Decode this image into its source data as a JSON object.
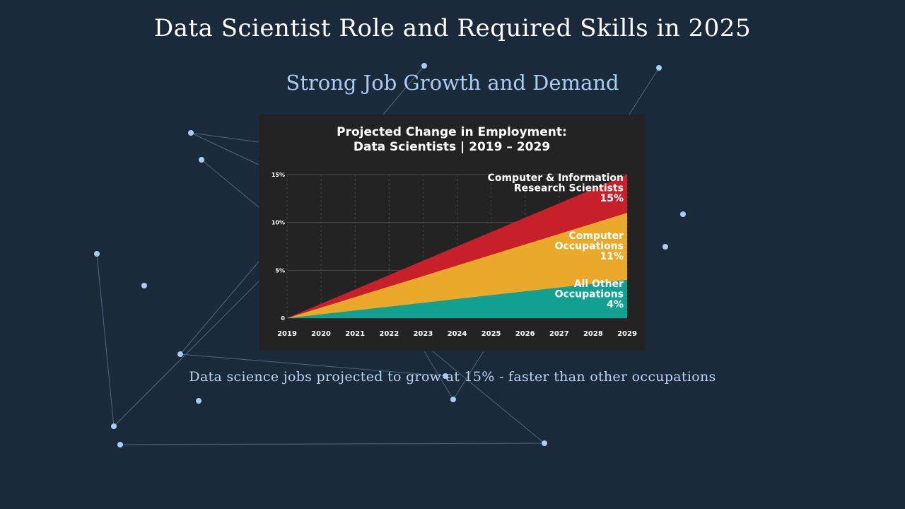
{
  "slide": {
    "title": "Data Scientist Role and Required Skills in 2025",
    "subtitle": "Strong Job Growth and Demand",
    "caption": "Data science jobs projected to grow at 15% - faster than other occupations"
  },
  "colors": {
    "background": "#1b2a3b",
    "network_line": "#4d6680",
    "network_node": "#a9cdf2",
    "panel": "#232323"
  },
  "chart_data": {
    "type": "area",
    "title_line1": "Projected Change in Employment:",
    "title_line2": "Data Scientists | 2019 – 2029",
    "x": [
      2019,
      2020,
      2021,
      2022,
      2023,
      2024,
      2025,
      2026,
      2027,
      2028,
      2029
    ],
    "x_tick_labels": [
      "2019",
      "2020",
      "2021",
      "2022",
      "2023",
      "2024",
      "2025",
      "2026",
      "2027",
      "2028",
      "2029"
    ],
    "y_tick_labels": [
      "0",
      "5%",
      "10%",
      "15%"
    ],
    "y_ticks": [
      0,
      5,
      10,
      15
    ],
    "ylim": [
      0,
      15
    ],
    "grid": true,
    "series": [
      {
        "name": "Computer & Information Research Scientists",
        "label_lines": [
          "Computer & Information",
          "Research Scientists",
          "15%"
        ],
        "end_value": 15,
        "values": [
          0,
          1.5,
          3,
          4.5,
          6,
          7.5,
          9,
          10.5,
          12,
          13.5,
          15
        ],
        "color": "#c8202a"
      },
      {
        "name": "Computer Occupations",
        "label_lines": [
          "Computer",
          "Occupations",
          "11%"
        ],
        "end_value": 11,
        "values": [
          0,
          1.1,
          2.2,
          3.3,
          4.4,
          5.5,
          6.6,
          7.7,
          8.8,
          9.9,
          11
        ],
        "color": "#eaa92a"
      },
      {
        "name": "All Other Occupations",
        "label_lines": [
          "All Other",
          "Occupations",
          "4%"
        ],
        "end_value": 4,
        "values": [
          0,
          0.4,
          0.8,
          1.2,
          1.6,
          2.0,
          2.4,
          2.8,
          3.2,
          3.6,
          4
        ],
        "color": "#12a090"
      }
    ]
  }
}
